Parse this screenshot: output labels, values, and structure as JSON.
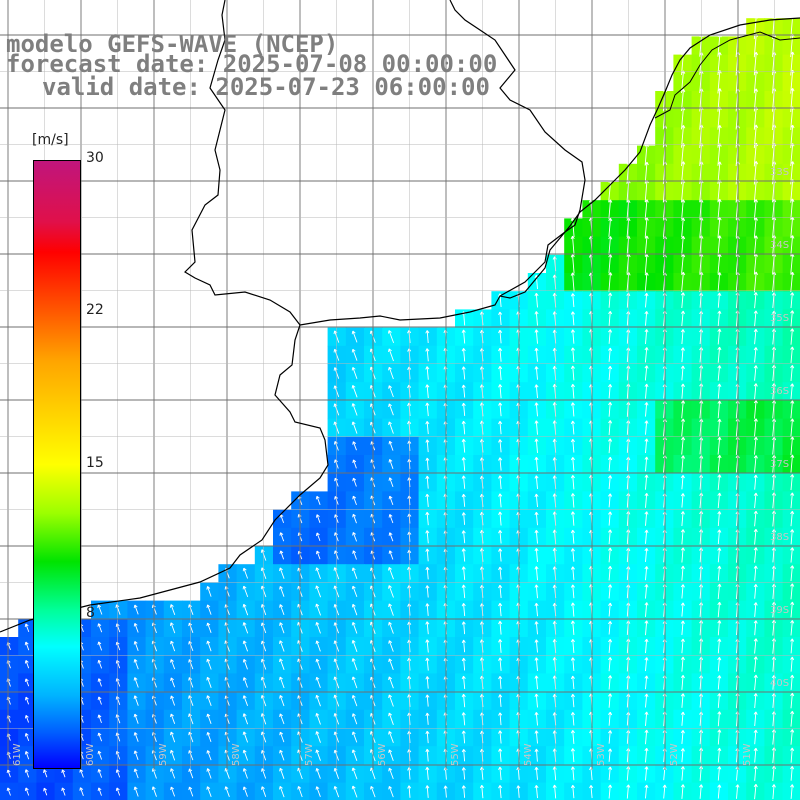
{
  "title": {
    "line1": "modelo GEFS-WAVE (NCEP)",
    "line2": "forecast date: 2025-07-08 00:00:00",
    "line3": "valid date: 2025-07-23 06:00:00"
  },
  "colorbar": {
    "unit": "[m/s]",
    "ticks": [
      "30",
      "22",
      "15",
      "8"
    ],
    "tick_values": [
      30,
      22,
      15,
      8
    ],
    "range": [
      0,
      30
    ]
  },
  "axis": {
    "lon_labels": [
      "61W",
      "60W",
      "59W",
      "58W",
      "57W",
      "56W",
      "55W",
      "54W",
      "53W",
      "52W",
      "51W"
    ],
    "lat_labels": [
      "33S",
      "34S",
      "35S",
      "36S",
      "37S",
      "38S",
      "39S",
      "40S"
    ]
  },
  "colors": {
    "land": "#ffffff",
    "coast": "#000000",
    "grid": "#7a7a7a",
    "arrows": "#ffffff"
  }
}
